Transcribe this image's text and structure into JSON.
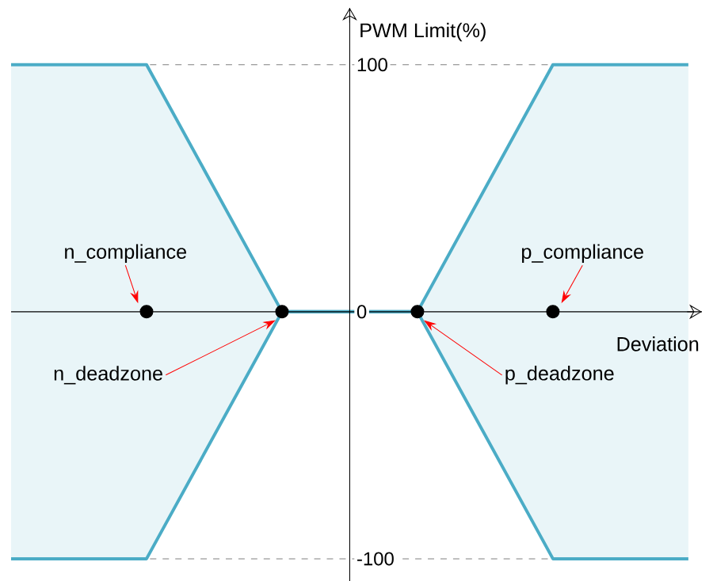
{
  "chart_data": {
    "type": "area",
    "xlabel": "Deviation",
    "ylabel": "PWM Limit(%)",
    "categories": [
      null,
      null,
      null,
      null,
      null,
      null
    ],
    "series": [
      {
        "color": "#4bacc6",
        "values": [
          100,
          100,
          0,
          0,
          100,
          100
        ]
      },
      {
        "color": "#4bacc6",
        "values": [
          -100,
          -100,
          0,
          0,
          -100,
          -100
        ]
      },
      {
        "type": "scatter",
        "color": "#000000",
        "values": [
          null,
          0,
          0,
          0,
          0,
          null
        ]
      }
    ],
    "ylim": [
      -109,
      123
    ],
    "yticks": [
      -100,
      0,
      100
    ],
    "tick_labels": "y",
    "ref_lines": [
      {
        "axis": "y",
        "value": 100,
        "color": "#808080",
        "line_style": "dashed"
      },
      {
        "axis": "y",
        "value": -100,
        "color": "#808080",
        "line_style": "dashed"
      }
    ],
    "annotations": [
      "n_compliance",
      "n_deadzone",
      "p_deadzone",
      "p_compliance"
    ]
  }
}
